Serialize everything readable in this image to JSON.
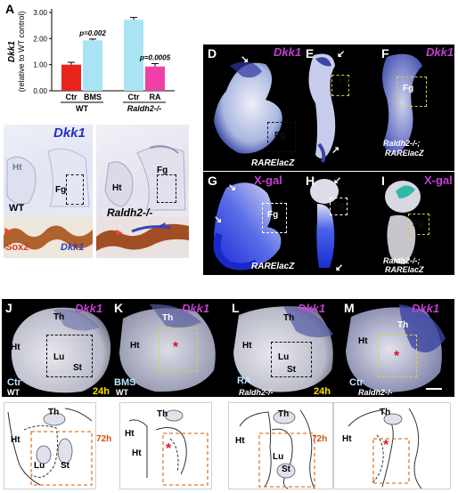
{
  "panels": {
    "A": "A",
    "B": "B",
    "C": "C",
    "D": "D",
    "E": "E",
    "F": "F",
    "G": "G",
    "H": "H",
    "I": "I",
    "J": "J",
    "K": "K",
    "L": "L",
    "M": "M"
  },
  "chart_data": {
    "type": "bar",
    "ylabel_line1": "Dkk1",
    "ylabel_line2": "(relative to WT control)",
    "ylim": [
      0,
      3
    ],
    "yticks": [
      "0.00",
      "1.00",
      "2.00",
      "3.00"
    ],
    "categories": [
      "Ctr",
      "BMS",
      "Ctr",
      "RA"
    ],
    "groups": [
      "WT",
      "Raldh2-/-"
    ],
    "values": [
      1.0,
      1.93,
      2.72,
      0.93
    ],
    "errors": [
      0.09,
      0.05,
      0.09,
      0.11
    ],
    "colors": [
      "#e8241c",
      "#a8e4f4",
      "#a8e4f4",
      "#f040a8"
    ],
    "annotations": [
      {
        "bar": 1,
        "text": "p=0.002"
      },
      {
        "bar": 3,
        "text": "p=0.0005"
      }
    ]
  },
  "labels": {
    "dkk1": "Dkk1",
    "xgal": "X-gal",
    "wt": "WT",
    "raldh": "Raldh2-/-",
    "ht": "Ht",
    "fg": "Fg",
    "sox2": "Sox2",
    "rarelacz": "RARElacZ",
    "raldh_line1": "Raldh2-/-;",
    "raldh_line2": "RARElacZ",
    "th": "Th",
    "lu": "Lu",
    "st": "St",
    "ctr": "Ctr",
    "bms": "BMS",
    "ra": "RA",
    "h24": "24h",
    "h72": "72h",
    "star": "*"
  },
  "colors": {
    "accent_magenta": "#c040d0",
    "dkk1_blue": "#2430c8",
    "star_red": "#e0102a",
    "box_orange": "#e07a2a"
  }
}
